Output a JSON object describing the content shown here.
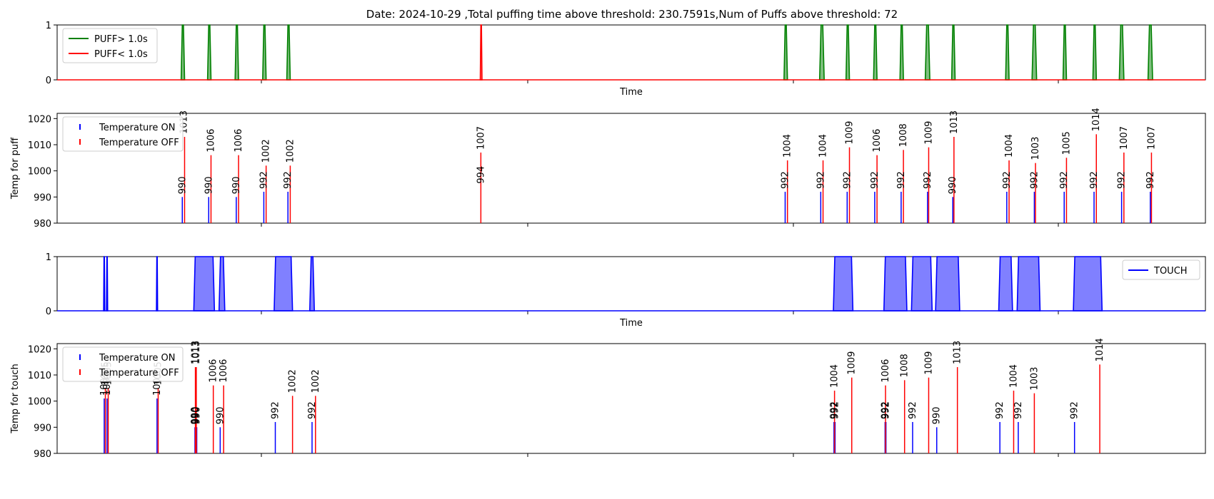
{
  "title": "Date: 2024-10-29 ,Total puffing time above threshold: 230.7591s,Num of Puffs above threshold: 72",
  "colors": {
    "puff_long": "#008000",
    "puff_short": "#ff0000",
    "puff_fill": "#008000",
    "touch_line": "#0000ff",
    "touch_fill": "#8080ff",
    "temp_on": "#0000ff",
    "temp_off": "#ff0000"
  },
  "chart_data": [
    {
      "id": "puff",
      "type": "area",
      "xlabel": "Time",
      "ylabel": "",
      "ylim": [
        0,
        1
      ],
      "yticks": [
        0,
        1
      ],
      "xlim": [
        0,
        1000
      ],
      "grid": false,
      "legend": {
        "placement": "top-left",
        "entries": [
          "PUFF> 1.0s",
          "PUFF< 1.0s"
        ]
      },
      "series": [
        {
          "name": "PUFF> 1.0s",
          "pulses": [
            [
              108,
              111
            ],
            [
              131,
              134
            ],
            [
              155,
              158
            ],
            [
              179,
              182
            ],
            [
              200,
              203
            ],
            [
              633,
              636
            ],
            [
              664,
              668
            ],
            [
              687,
              690
            ],
            [
              711,
              714
            ],
            [
              734,
              737
            ],
            [
              756,
              760
            ],
            [
              779,
              782
            ],
            [
              826,
              829
            ],
            [
              849,
              853
            ],
            [
              876,
              879
            ],
            [
              902,
              905
            ],
            [
              925,
              929
            ],
            [
              950,
              954
            ]
          ]
        },
        {
          "name": "PUFF< 1.0s",
          "pulses": [
            [
              368.5,
              370
            ]
          ]
        }
      ]
    },
    {
      "id": "temp_puff",
      "type": "bar",
      "xlabel": "",
      "ylabel": "Temp for puff",
      "ylim": [
        980,
        1022
      ],
      "yticks": [
        980,
        990,
        1000,
        1010,
        1020
      ],
      "xlim": [
        0,
        1000
      ],
      "grid": false,
      "legend": {
        "placement": "top-left",
        "entries": [
          "Temperature ON",
          "Temperature OFF"
        ]
      },
      "series": [
        {
          "name": "Temperature ON",
          "points": [
            [
              109,
              990
            ],
            [
              132,
              990
            ],
            [
              156,
              990
            ],
            [
              180,
              992
            ],
            [
              201,
              992
            ],
            [
              634,
              992
            ],
            [
              665,
              992
            ],
            [
              688,
              992
            ],
            [
              712,
              992
            ],
            [
              735,
              992
            ],
            [
              758,
              992
            ],
            [
              780,
              990
            ],
            [
              827,
              992
            ],
            [
              851,
              992
            ],
            [
              877,
              992
            ],
            [
              903,
              992
            ],
            [
              927,
              992
            ],
            [
              952,
              992
            ]
          ]
        },
        {
          "name": "Temperature OFF",
          "points": [
            [
              111,
              1013
            ],
            [
              134,
              1006
            ],
            [
              158,
              1006
            ],
            [
              182,
              1002
            ],
            [
              203,
              1002
            ],
            [
              369,
              1007
            ],
            [
              636,
              1004
            ],
            [
              667,
              1004
            ],
            [
              690,
              1009
            ],
            [
              714,
              1006
            ],
            [
              737,
              1008
            ],
            [
              759,
              1009
            ],
            [
              781,
              1013
            ],
            [
              829,
              1004
            ],
            [
              852,
              1003
            ],
            [
              879,
              1005
            ],
            [
              905,
              1014
            ],
            [
              929,
              1007
            ],
            [
              953,
              1007
            ]
          ]
        }
      ],
      "annotations": [
        {
          "x": 109,
          "text": "990"
        },
        {
          "x": 110.5,
          "text": "1013"
        },
        {
          "x": 132,
          "text": "990"
        },
        {
          "x": 134,
          "text": "1006"
        },
        {
          "x": 156,
          "text": "990"
        },
        {
          "x": 158,
          "text": "1006"
        },
        {
          "x": 180,
          "text": "992"
        },
        {
          "x": 182,
          "text": "1002"
        },
        {
          "x": 201,
          "text": "992"
        },
        {
          "x": 203,
          "text": "1002"
        },
        {
          "x": 369,
          "text": "994"
        },
        {
          "x": 369,
          "text": "1007"
        },
        {
          "x": 634,
          "text": "992"
        },
        {
          "x": 636,
          "text": "1004"
        },
        {
          "x": 665,
          "text": "992"
        },
        {
          "x": 667,
          "text": "1004"
        },
        {
          "x": 688,
          "text": "992"
        },
        {
          "x": 690,
          "text": "1009"
        },
        {
          "x": 712,
          "text": "992"
        },
        {
          "x": 714,
          "text": "1006"
        },
        {
          "x": 735,
          "text": "992"
        },
        {
          "x": 737,
          "text": "1008"
        },
        {
          "x": 758,
          "text": "992"
        },
        {
          "x": 759,
          "text": "1009"
        },
        {
          "x": 780,
          "text": "990"
        },
        {
          "x": 781,
          "text": "1013"
        },
        {
          "x": 827,
          "text": "992"
        },
        {
          "x": 829,
          "text": "1004"
        },
        {
          "x": 851,
          "text": "992"
        },
        {
          "x": 852,
          "text": "1003"
        },
        {
          "x": 877,
          "text": "992"
        },
        {
          "x": 879,
          "text": "1005"
        },
        {
          "x": 903,
          "text": "992"
        },
        {
          "x": 905,
          "text": "1014"
        },
        {
          "x": 927,
          "text": "992"
        },
        {
          "x": 929,
          "text": "1007"
        },
        {
          "x": 952,
          "text": "992"
        },
        {
          "x": 953,
          "text": "1007"
        }
      ]
    },
    {
      "id": "touch",
      "type": "area",
      "xlabel": "Time",
      "ylabel": "",
      "ylim": [
        0,
        1
      ],
      "yticks": [
        0,
        1
      ],
      "xlim": [
        0,
        1000
      ],
      "grid": false,
      "legend": {
        "placement": "top-right",
        "entries": [
          "TOUCH"
        ]
      },
      "series": [
        {
          "name": "TOUCH",
          "pulses": [
            [
              40.5,
              41.5
            ],
            [
              43,
              44
            ],
            [
              86.5,
              87.5
            ],
            [
              119,
              137
            ],
            [
              141,
              146
            ],
            [
              189,
              205
            ],
            [
              220,
              224
            ],
            [
              676,
              693
            ],
            [
              720,
              740
            ],
            [
              744,
              762
            ],
            [
              765,
              786
            ],
            [
              820,
              832
            ],
            [
              836,
              856
            ],
            [
              885,
              910
            ]
          ]
        }
      ]
    },
    {
      "id": "temp_touch",
      "type": "bar",
      "xlabel": "",
      "ylabel": "Temp for touch",
      "ylim": [
        980,
        1022
      ],
      "yticks": [
        980,
        990,
        1000,
        1010,
        1020
      ],
      "xlim": [
        0,
        1000
      ],
      "grid": false,
      "legend": {
        "placement": "top-left",
        "entries": [
          "Temperature ON",
          "Temperature OFF"
        ]
      },
      "series": [
        {
          "name": "Temperature ON",
          "points": [
            [
              41,
              1001
            ],
            [
              43.5,
              1001
            ],
            [
              87,
              1001
            ],
            [
              120,
              990
            ],
            [
              120.8,
              990
            ],
            [
              121.6,
              990
            ],
            [
              142,
              990
            ],
            [
              190,
              992
            ],
            [
              222,
              992
            ],
            [
              676.5,
              992
            ],
            [
              677.5,
              992
            ],
            [
              721,
              992
            ],
            [
              721.8,
              992
            ],
            [
              745,
              992
            ],
            [
              766,
              990
            ],
            [
              821,
              992
            ],
            [
              837,
              992
            ],
            [
              886,
              992
            ]
          ]
        },
        {
          "name": "Temperature OFF",
          "points": [
            [
              42,
              1005
            ],
            [
              44.5,
              1005
            ],
            [
              88,
              1005
            ],
            [
              120.4,
              1013
            ],
            [
              121.2,
              1013
            ],
            [
              136,
              1006
            ],
            [
              145,
              1006
            ],
            [
              205,
              1002
            ],
            [
              225,
              1002
            ],
            [
              677,
              1004
            ],
            [
              692,
              1009
            ],
            [
              721.4,
              1006
            ],
            [
              738,
              1008
            ],
            [
              759,
              1009
            ],
            [
              784,
              1013
            ],
            [
              833,
              1004
            ],
            [
              851,
              1003
            ],
            [
              908,
              1014
            ]
          ]
        }
      ],
      "annotations": [
        {
          "x": 41,
          "text": "1001"
        },
        {
          "x": 42,
          "text": "1005"
        },
        {
          "x": 43.5,
          "text": "1001"
        },
        {
          "x": 44.5,
          "text": "1005"
        },
        {
          "x": 87,
          "text": "1001"
        },
        {
          "x": 88,
          "text": "1005"
        },
        {
          "x": 120,
          "text": "990"
        },
        {
          "x": 120.8,
          "text": "990"
        },
        {
          "x": 121.6,
          "text": "990"
        },
        {
          "x": 120.4,
          "text": "1013"
        },
        {
          "x": 121.2,
          "text": "1013"
        },
        {
          "x": 136,
          "text": "1006"
        },
        {
          "x": 142,
          "text": "990"
        },
        {
          "x": 145,
          "text": "1006"
        },
        {
          "x": 190,
          "text": "992"
        },
        {
          "x": 205,
          "text": "1002"
        },
        {
          "x": 222,
          "text": "992"
        },
        {
          "x": 225,
          "text": "1002"
        },
        {
          "x": 676.5,
          "text": "992"
        },
        {
          "x": 677.5,
          "text": "992"
        },
        {
          "x": 677,
          "text": "1004"
        },
        {
          "x": 692,
          "text": "1009"
        },
        {
          "x": 721,
          "text": "992"
        },
        {
          "x": 721.8,
          "text": "992"
        },
        {
          "x": 721.4,
          "text": "1006"
        },
        {
          "x": 738,
          "text": "1008"
        },
        {
          "x": 745,
          "text": "992"
        },
        {
          "x": 759,
          "text": "1009"
        },
        {
          "x": 766,
          "text": "990"
        },
        {
          "x": 784,
          "text": "1013"
        },
        {
          "x": 821,
          "text": "992"
        },
        {
          "x": 833,
          "text": "1004"
        },
        {
          "x": 837,
          "text": "992"
        },
        {
          "x": 851,
          "text": "1003"
        },
        {
          "x": 886,
          "text": "992"
        },
        {
          "x": 908,
          "text": "1014"
        }
      ]
    }
  ]
}
